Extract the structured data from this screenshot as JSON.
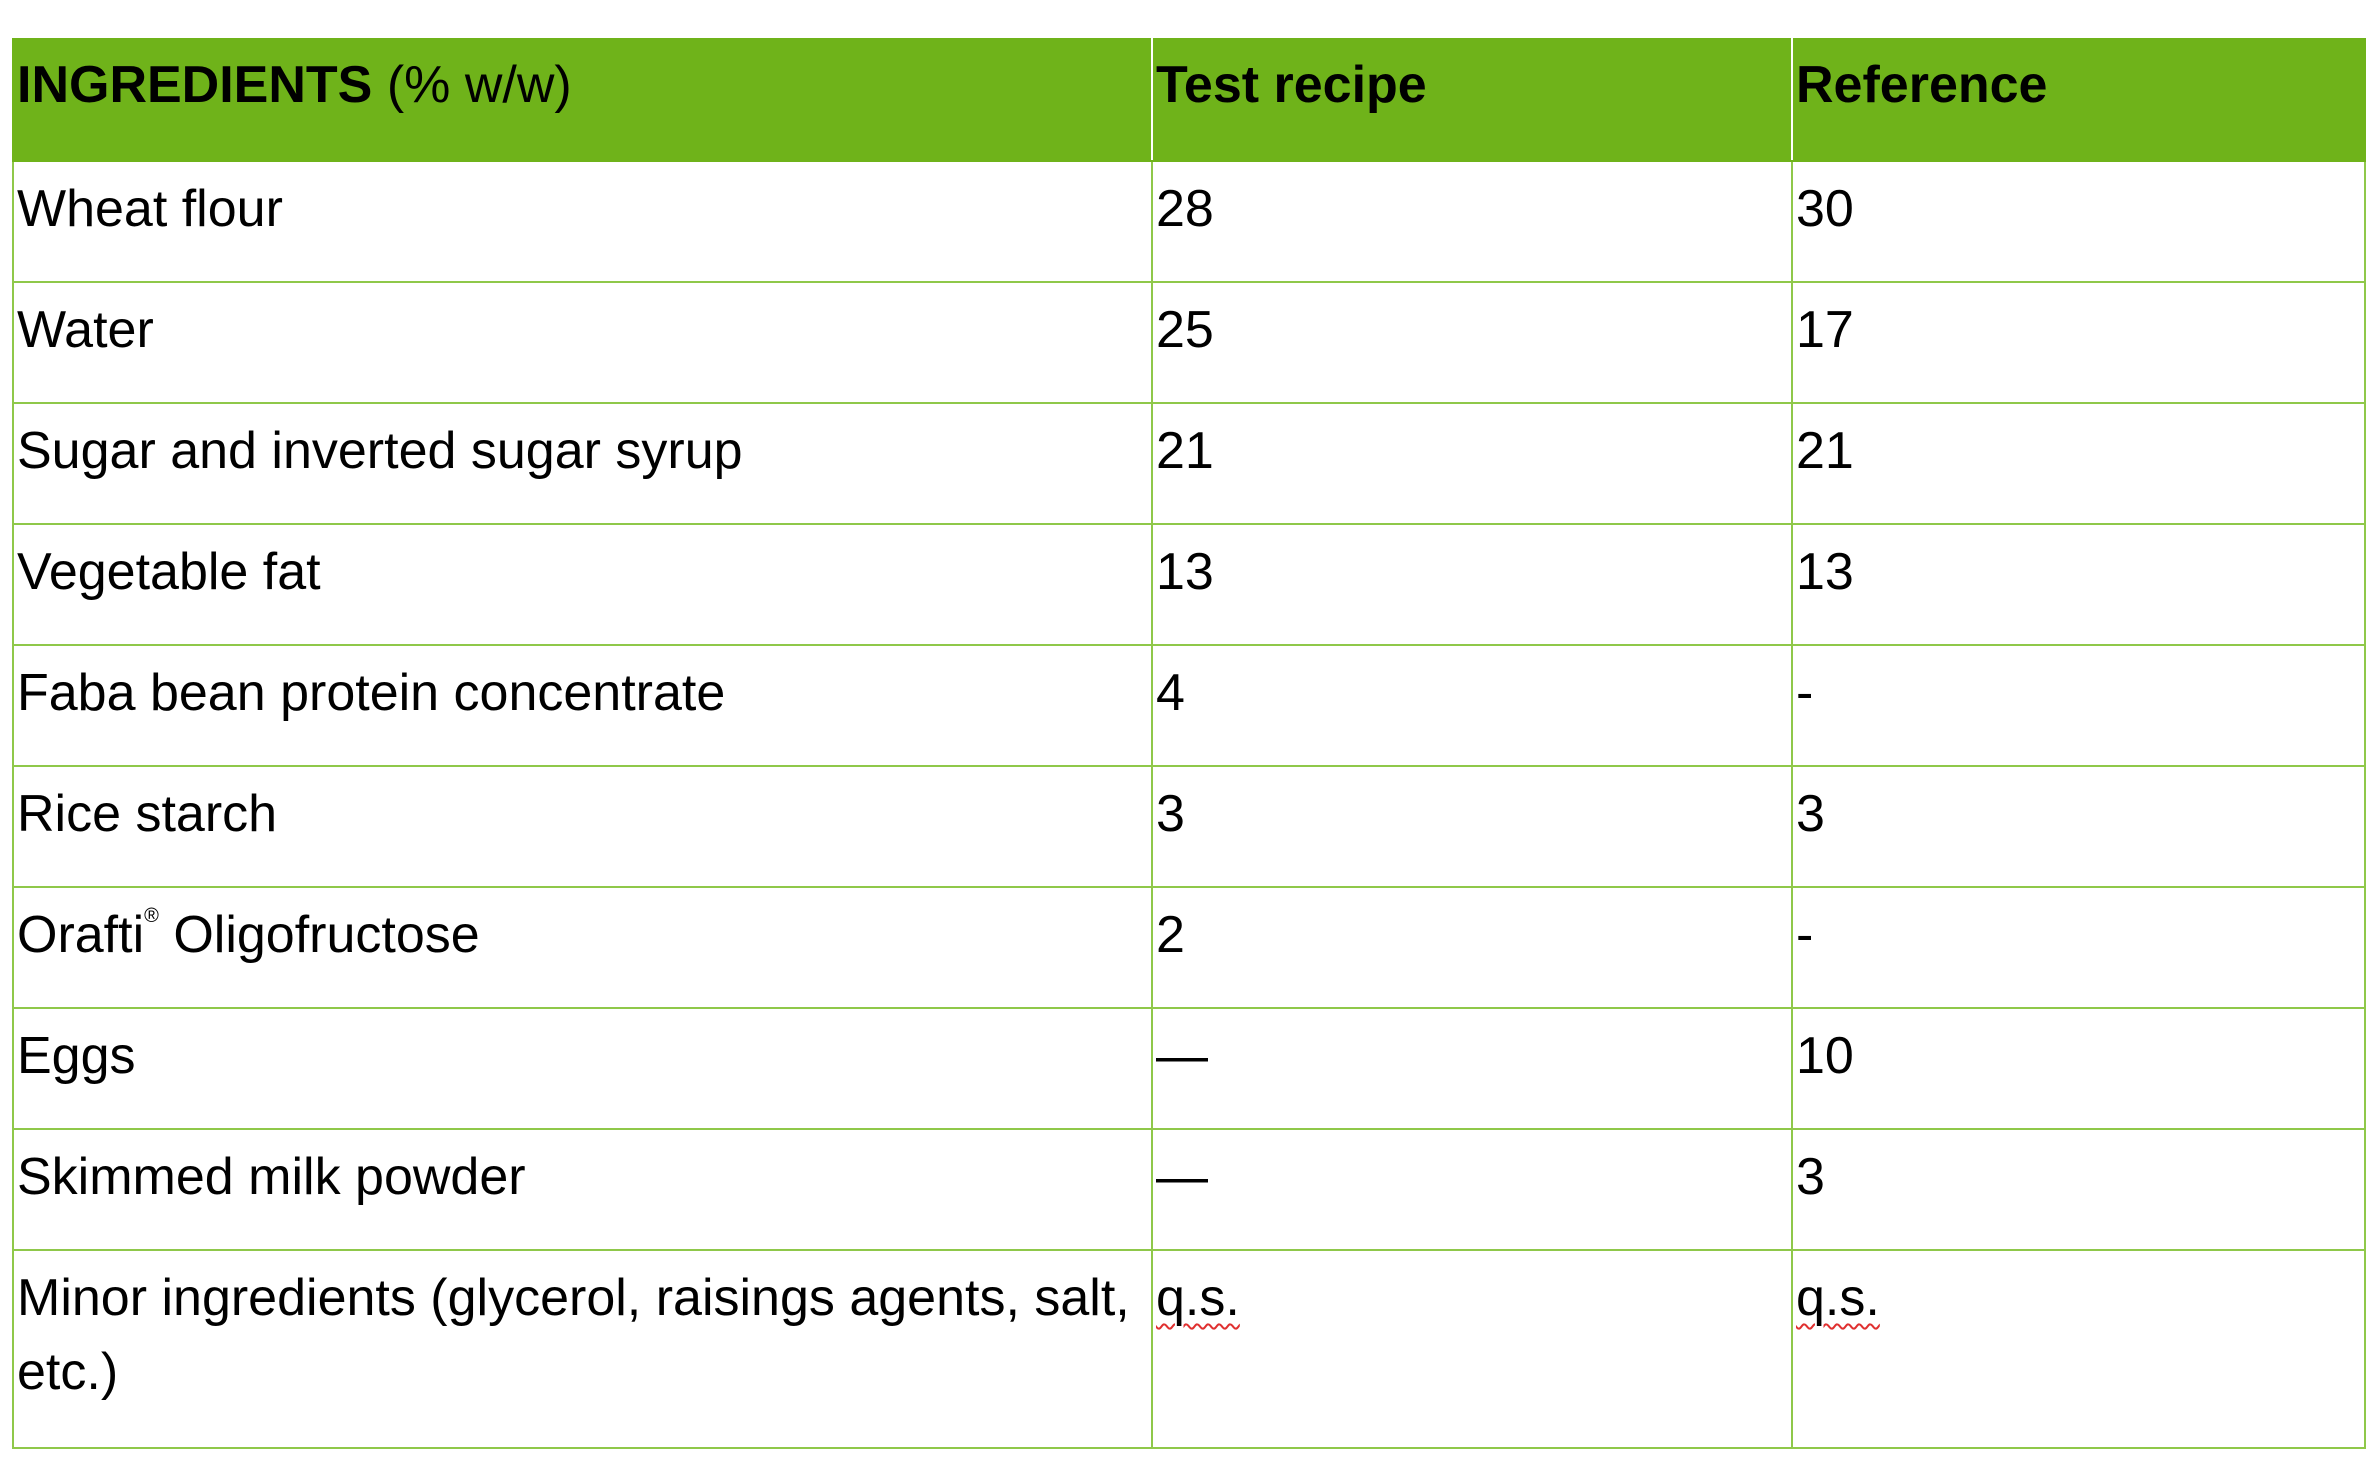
{
  "table": {
    "header": {
      "col1_main": "INGREDIENTS",
      "col1_unit": "(% w/w)",
      "col2": "Test recipe",
      "col3": "Reference"
    },
    "rows": [
      {
        "ingredient": "Wheat flour",
        "test": "28",
        "reference": "30"
      },
      {
        "ingredient": "Water",
        "test": "25",
        "reference": "17"
      },
      {
        "ingredient": "Sugar and inverted sugar syrup",
        "test": "21",
        "reference": "21"
      },
      {
        "ingredient": "Vegetable fat",
        "test": "13",
        "reference": "13"
      },
      {
        "ingredient": "Faba bean protein concentrate",
        "test": "4",
        "reference": "-"
      },
      {
        "ingredient": "Rice starch",
        "test": "3",
        "reference": "3"
      },
      {
        "ingredient": "Orafti",
        "ingredient_mark": "®",
        "ingredient_rest": " Oligofructose",
        "test": "2",
        "reference": "-"
      },
      {
        "ingredient": "Eggs",
        "test": "—",
        "reference": "10"
      },
      {
        "ingredient": "Skimmed milk powder",
        "test": "—",
        "reference": "3"
      },
      {
        "ingredient": "Minor ingredients (glycerol, raisings agents, salt, etc.)",
        "test": "q.s.",
        "reference": "q.s."
      }
    ]
  },
  "colors": {
    "header_bg": "#6fb31a",
    "grid": "#8fc84a",
    "spellcheck": "#e03030"
  }
}
